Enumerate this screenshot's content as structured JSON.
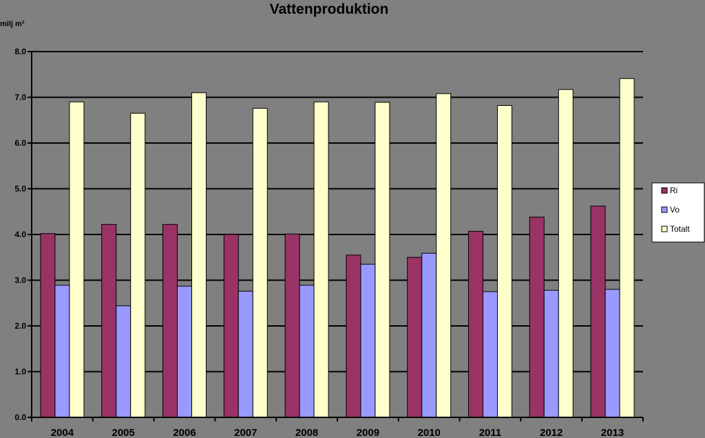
{
  "chart_data": {
    "type": "bar",
    "title": "Vattenproduktion",
    "ylabel": "milj m³",
    "xlabel": "",
    "categories": [
      "2004",
      "2005",
      "2006",
      "2007",
      "2008",
      "2009",
      "2010",
      "2011",
      "2012",
      "2013"
    ],
    "series": [
      {
        "name": "Ri",
        "color": "#993366",
        "values": [
          4.02,
          4.22,
          4.22,
          4.0,
          4.01,
          3.55,
          3.5,
          4.07,
          4.38,
          4.62
        ]
      },
      {
        "name": "Vo",
        "color": "#9999FF",
        "values": [
          2.89,
          2.44,
          2.87,
          2.76,
          2.89,
          3.35,
          3.59,
          2.75,
          2.78,
          2.8
        ]
      },
      {
        "name": "Totalt",
        "color": "#FFFFCC",
        "values": [
          6.9,
          6.65,
          7.1,
          6.76,
          6.9,
          6.89,
          7.08,
          6.82,
          7.17,
          7.41
        ]
      }
    ],
    "ylim": [
      0,
      8
    ],
    "yticks": [
      "0.0",
      "1.0",
      "2.0",
      "3.0",
      "4.0",
      "5.0",
      "6.0",
      "7.0",
      "8.0"
    ],
    "grid": true,
    "legend_position": "right"
  }
}
